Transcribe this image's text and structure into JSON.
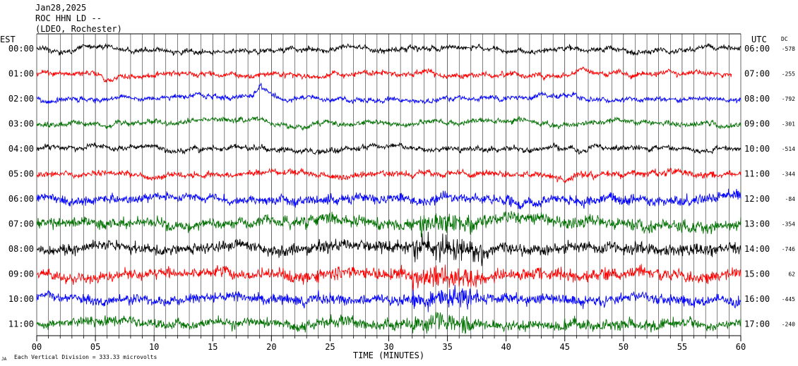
{
  "header": {
    "date": "Jan28,2025",
    "station": "ROC HHN LD --",
    "network": "(LDEO, Rochester)"
  },
  "left_axis_title": "EST",
  "right_axis_title": "UTC",
  "dc_title": "DC",
  "footer": {
    "scale_note": "Each Vertical Division = 333.33 microvolts",
    "logo_text": "JA"
  },
  "colors": {
    "background": "#ffffff",
    "grid": "#000000",
    "traces": [
      "#000000",
      "#ff0000",
      "#0000ff",
      "#007000"
    ]
  },
  "chart_data": {
    "type": "line",
    "title": "",
    "xlabel": "TIME (MINUTES)",
    "ylabel": "",
    "xlim": [
      0,
      60
    ],
    "x_ticks": [
      "00",
      "05",
      "10",
      "15",
      "20",
      "25",
      "30",
      "35",
      "40",
      "45",
      "50",
      "55",
      "60"
    ],
    "rows": [
      {
        "est": "00:00",
        "utc": "06:00",
        "dc": "-578",
        "color": "#000000",
        "amp": 0.7
      },
      {
        "est": "01:00",
        "utc": "07:00",
        "dc": "-255",
        "color": "#ff0000",
        "amp": 0.7
      },
      {
        "est": "02:00",
        "utc": "08:00",
        "dc": "-792",
        "color": "#0000ff",
        "amp": 0.65
      },
      {
        "est": "03:00",
        "utc": "09:00",
        "dc": "-301",
        "color": "#007000",
        "amp": 0.7
      },
      {
        "est": "04:00",
        "utc": "10:00",
        "dc": "-514",
        "color": "#000000",
        "amp": 0.7
      },
      {
        "est": "05:00",
        "utc": "11:00",
        "dc": "-344",
        "color": "#ff0000",
        "amp": 0.8
      },
      {
        "est": "06:00",
        "utc": "12:00",
        "dc": "-84",
        "color": "#0000ff",
        "amp": 1.3
      },
      {
        "est": "07:00",
        "utc": "13:00",
        "dc": "-354",
        "color": "#007000",
        "amp": 1.5
      },
      {
        "est": "08:00",
        "utc": "14:00",
        "dc": "-746",
        "color": "#000000",
        "amp": 1.6
      },
      {
        "est": "09:00",
        "utc": "15:00",
        "dc": "62",
        "color": "#ff0000",
        "amp": 1.6
      },
      {
        "est": "10:00",
        "utc": "16:00",
        "dc": "-445",
        "color": "#0000ff",
        "amp": 1.4
      },
      {
        "est": "11:00",
        "utc": "17:00",
        "dc": "-240",
        "color": "#007000",
        "amp": 1.4
      }
    ],
    "events": [
      {
        "row": 2,
        "minute": 18.8,
        "amplitude": 1.2
      },
      {
        "row": 4,
        "minute": 47.3,
        "amplitude": 0.9
      },
      {
        "row": 1,
        "minute": 46.2,
        "amplitude": 0.8
      }
    ],
    "grid": true
  }
}
